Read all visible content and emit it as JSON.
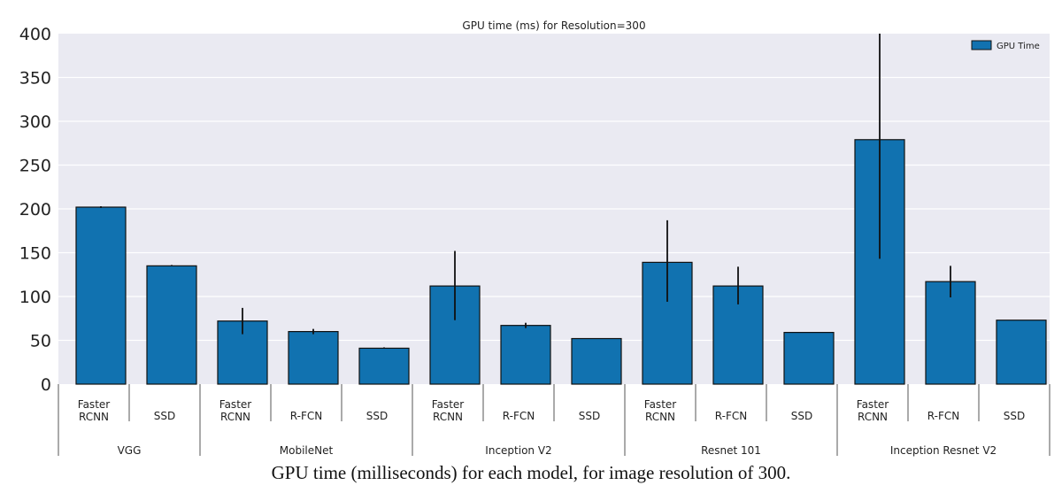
{
  "chart_data": {
    "type": "bar",
    "title": "GPU time (ms) for Resolution=300",
    "xlabel": "",
    "ylabel": "",
    "ylim": [
      0,
      400
    ],
    "yticks": [
      0,
      50,
      100,
      150,
      200,
      250,
      300,
      350,
      400
    ],
    "grid": true,
    "legend": {
      "entries": [
        "GPU Time"
      ],
      "placement": "top-right"
    },
    "groups": [
      {
        "name": "VGG",
        "categories": [
          "Faster\nRCNN",
          "SSD"
        ]
      },
      {
        "name": "MobileNet",
        "categories": [
          "Faster\nRCNN",
          "R-FCN",
          "SSD"
        ]
      },
      {
        "name": "Inception V2",
        "categories": [
          "Faster\nRCNN",
          "R-FCN",
          "SSD"
        ]
      },
      {
        "name": "Resnet 101",
        "categories": [
          "Faster\nRCNN",
          "R-FCN",
          "SSD"
        ]
      },
      {
        "name": "Inception Resnet V2",
        "categories": [
          "Faster\nRCNN",
          "R-FCN",
          "SSD"
        ]
      }
    ],
    "series": [
      {
        "name": "GPU Time",
        "color": "#1172b0",
        "values": [
          202,
          135,
          72,
          60,
          41,
          112,
          67,
          52,
          139,
          112,
          59,
          279,
          117,
          73
        ],
        "error_low": [
          201,
          135,
          57,
          57,
          41,
          73,
          64,
          52,
          94,
          91,
          59,
          143,
          99,
          73
        ],
        "error_high": [
          203,
          136,
          87,
          63,
          42,
          152,
          70,
          52,
          187,
          134,
          59,
          420,
          135,
          73
        ]
      }
    ]
  },
  "caption": "GPU time (milliseconds) for each model, for image resolution of 300."
}
